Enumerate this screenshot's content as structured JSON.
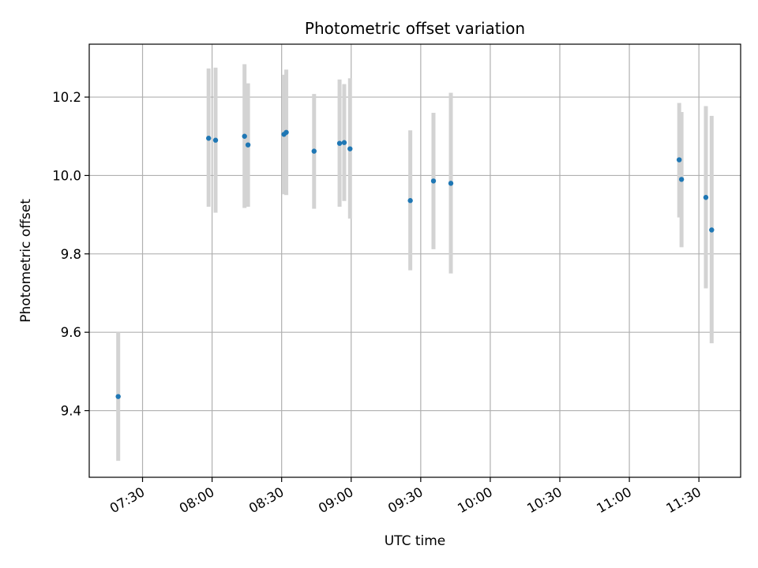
{
  "chart_data": {
    "type": "scatter",
    "title": "Photometric offset variation",
    "xlabel": "UTC time",
    "ylabel": "Photometric offset",
    "x_axis_type": "time",
    "xlim": [
      "07:07",
      "11:48"
    ],
    "ylim": [
      9.23,
      10.335
    ],
    "grid": true,
    "x_ticks": [
      "07:30",
      "08:00",
      "08:30",
      "09:00",
      "09:30",
      "10:00",
      "10:30",
      "11:00",
      "11:30"
    ],
    "y_ticks": [
      9.4,
      9.6,
      9.8,
      10.0,
      10.2
    ],
    "y_tick_labels": [
      "9.4",
      "9.6",
      "9.8",
      "10.0",
      "10.2"
    ],
    "x_tick_rotation": 30,
    "marker_color": "#1f77b4",
    "errorbar_color": "#d3d3d3",
    "points": [
      {
        "x": "07:19:30",
        "y": 9.436,
        "ylo": 9.272,
        "yhi": 9.6
      },
      {
        "x": "07:58:30",
        "y": 10.095,
        "ylo": 9.92,
        "yhi": 10.273
      },
      {
        "x": "08:01:30",
        "y": 10.09,
        "ylo": 9.905,
        "yhi": 10.275
      },
      {
        "x": "08:14:00",
        "y": 10.1,
        "ylo": 9.917,
        "yhi": 10.284
      },
      {
        "x": "08:15:30",
        "y": 10.078,
        "ylo": 9.92,
        "yhi": 10.235
      },
      {
        "x": "08:31:00",
        "y": 10.105,
        "ylo": 9.952,
        "yhi": 10.257
      },
      {
        "x": "08:32:00",
        "y": 10.11,
        "ylo": 9.95,
        "yhi": 10.27
      },
      {
        "x": "08:44:00",
        "y": 10.062,
        "ylo": 9.915,
        "yhi": 10.208
      },
      {
        "x": "08:55:00",
        "y": 10.082,
        "ylo": 9.92,
        "yhi": 10.245
      },
      {
        "x": "08:57:00",
        "y": 10.084,
        "ylo": 9.935,
        "yhi": 10.233
      },
      {
        "x": "08:59:30",
        "y": 10.068,
        "ylo": 9.89,
        "yhi": 10.248
      },
      {
        "x": "09:25:30",
        "y": 9.936,
        "ylo": 9.758,
        "yhi": 10.115
      },
      {
        "x": "09:35:30",
        "y": 9.986,
        "ylo": 9.812,
        "yhi": 10.16
      },
      {
        "x": "09:43:00",
        "y": 9.98,
        "ylo": 9.75,
        "yhi": 10.211
      },
      {
        "x": "11:21:30",
        "y": 10.04,
        "ylo": 9.893,
        "yhi": 10.185
      },
      {
        "x": "11:22:30",
        "y": 9.99,
        "ylo": 9.817,
        "yhi": 10.162
      },
      {
        "x": "11:33:00",
        "y": 9.944,
        "ylo": 9.712,
        "yhi": 10.177
      },
      {
        "x": "11:35:30",
        "y": 9.861,
        "ylo": 9.572,
        "yhi": 10.152
      }
    ]
  }
}
